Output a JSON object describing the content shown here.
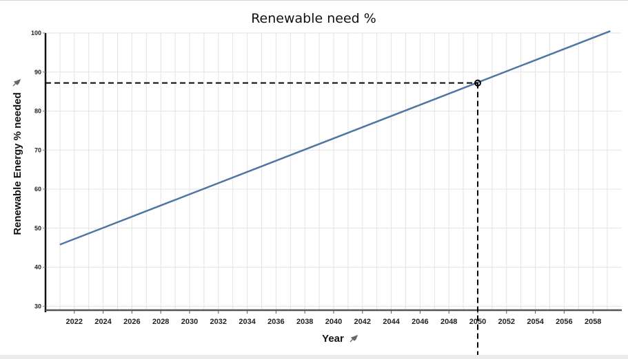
{
  "chart_data": {
    "type": "line",
    "title": "Renewable need %",
    "xlabel": "Year",
    "ylabel": "Renewable Energy % needed",
    "xlim": [
      2020,
      2060
    ],
    "ylim": [
      29,
      100
    ],
    "x_ticks": [
      2022,
      2024,
      2026,
      2028,
      2030,
      2032,
      2034,
      2036,
      2038,
      2040,
      2042,
      2044,
      2046,
      2048,
      2050,
      2052,
      2054,
      2056,
      2058
    ],
    "y_ticks": [
      30,
      40,
      50,
      60,
      70,
      80,
      90,
      100
    ],
    "grid": true,
    "series": [
      {
        "x": [
          2021,
          2059.2
        ],
        "y": [
          45.8,
          100.5
        ],
        "color": "#4f76a2"
      }
    ],
    "highlight": {
      "x": 2050,
      "y": 87.2
    },
    "pin_icon": "pin-icon"
  }
}
